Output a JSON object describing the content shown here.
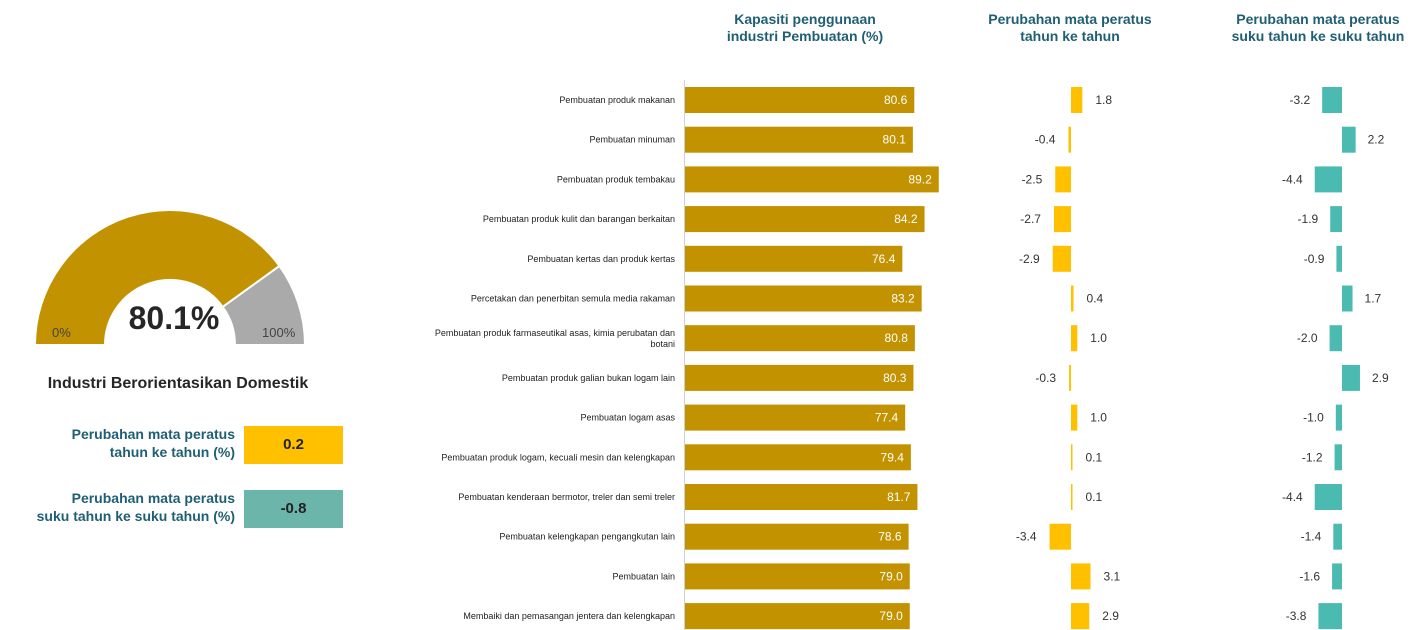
{
  "colors": {
    "gold": "#c39200",
    "yellow": "#ffc000",
    "teal": "#4bbbb2",
    "gray": "#aaaaaa",
    "teal_box": "#6bb5ab",
    "title": "#1f5f73"
  },
  "gauge": {
    "value_label": "80.1%",
    "value": 80.1,
    "min_label": "0%",
    "max_label": "100%"
  },
  "segment_title": "Industri Berorientasikan Domestik",
  "metrics": [
    {
      "label_line1": "Perubahan mata peratus",
      "label_line2": "tahun ke tahun (%)",
      "value": "0.2"
    },
    {
      "label_line1": "Perubahan mata peratus",
      "label_line2": "suku tahun ke suku tahun (%)",
      "value": "-0.8"
    }
  ],
  "chart_data": {
    "type": "bar",
    "column_titles": [
      [
        "Kapasiti penggunaan",
        "industri Pembuatan (%)"
      ],
      [
        "Perubahan mata peratus",
        "tahun ke tahun"
      ],
      [
        "Perubahan mata peratus",
        "suku tahun ke suku tahun"
      ]
    ],
    "categories": [
      [
        "Pembuatan produk makanan"
      ],
      [
        "Pembuatan minuman"
      ],
      [
        "Pembuatan produk tembakau"
      ],
      [
        "Pembuatan produk kulit dan barangan berkaitan"
      ],
      [
        "Pembuatan kertas dan produk kertas"
      ],
      [
        "Percetakan dan penerbitan semula media rakaman"
      ],
      [
        "Pembuatan produk farmaseutikal asas, kimia perubatan dan",
        "botani"
      ],
      [
        "Pembuatan produk galian bukan logam lain"
      ],
      [
        "Pembuatan logam asas"
      ],
      [
        "Pembuatan produk logam, kecuali mesin dan kelengkapan"
      ],
      [
        "Pembuatan kenderaan bermotor, treler dan semi treler"
      ],
      [
        "Pembuatan kelengkapan pengangkutan lain"
      ],
      [
        "Pembuatan lain"
      ],
      [
        "Membaiki dan pemasangan jentera dan kelengkapan"
      ]
    ],
    "capacity": [
      "80.6",
      "80.1",
      "89.2",
      "84.2",
      "76.4",
      "83.2",
      "80.8",
      "80.3",
      "77.4",
      "79.4",
      "81.7",
      "78.6",
      "79.0",
      "79.0"
    ],
    "yoy": [
      "1.8",
      "-0.4",
      "-2.5",
      "-2.7",
      "-2.9",
      "0.4",
      "1.0",
      "-0.3",
      "1.0",
      "0.1",
      "0.1",
      "-3.4",
      "3.1",
      "2.9"
    ],
    "qoq": [
      "-3.2",
      "2.2",
      "-4.4",
      "-1.9",
      "-0.9",
      "1.7",
      "-2.0",
      "2.9",
      "-1.0",
      "-1.2",
      "-4.4",
      "-1.4",
      "-1.6",
      "-3.8"
    ]
  }
}
